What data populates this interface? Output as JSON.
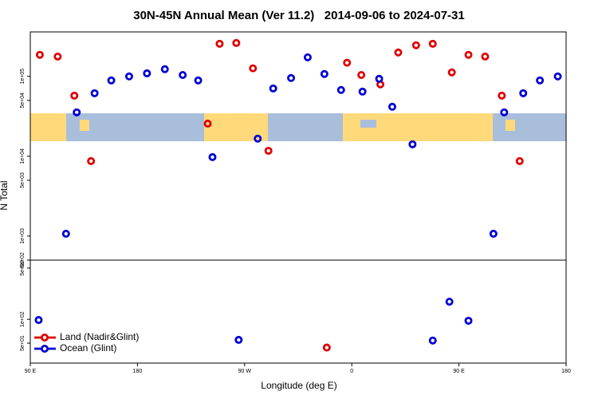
{
  "chart_data": {
    "type": "scatter",
    "title": "30N-45N Annual Mean (Ver 11.2)   2014-09-06 to 2024-07-31",
    "xlabel": "Longitude (deg E)",
    "ylabel": "N Total",
    "xlim": [
      90,
      540
    ],
    "xticks": [
      {
        "value": 90,
        "label": "90 E"
      },
      180,
      {
        "value": 270,
        "label": "90 W"
      },
      {
        "value": 360,
        "label": "0"
      },
      {
        "value": 450,
        "label": "90 E"
      },
      {
        "value": 540,
        "label": "180"
      }
    ],
    "log_y": true,
    "ylim": [
      500,
      360000
    ],
    "yticks": [
      {
        "value": 500,
        "label": "5e+02"
      },
      {
        "value": 1000,
        "label": "1e+03"
      },
      {
        "value": 5000,
        "label": "5e+03"
      },
      {
        "value": 10000,
        "label": "1e+04"
      },
      {
        "value": 50000,
        "label": "5e+04"
      },
      {
        "value": 100000,
        "label": "1e+05"
      }
    ],
    "y2lim": [
      28,
      560
    ],
    "y2ticks": [
      {
        "value": 50,
        "label": "5e+01"
      },
      {
        "value": 100,
        "label": "1e+02"
      },
      {
        "value": 500,
        "label": "5e+02"
      }
    ],
    "legend": "lower left",
    "series": [
      {
        "name": "Land (Nadir&Glint)",
        "color": "#e00000",
        "x": [
          98,
          113,
          127,
          141,
          239,
          249,
          263,
          277,
          290,
          339,
          356,
          368,
          384,
          399,
          414,
          428,
          444,
          458,
          472,
          486,
          501
        ],
        "values": [
          186000,
          177000,
          57400,
          8690,
          25600,
          256000,
          262000,
          126000,
          11700,
          44,
          148000,
          104000,
          79300,
          199000,
          245000,
          256000,
          112000,
          186000,
          177000,
          57400,
          8690
        ]
      },
      {
        "name": "Ocean (Glint)",
        "color": "#0000d8",
        "x": [
          97,
          120,
          129,
          144,
          158,
          173,
          188,
          203,
          218,
          231,
          243,
          265,
          281,
          294,
          309,
          323,
          337,
          351,
          369,
          383,
          394,
          411,
          428,
          442,
          458,
          479,
          488,
          504,
          518,
          533
        ],
        "values": [
          98,
          1070,
          35400,
          61500,
          88900,
          99800,
          109000,
          123000,
          104000,
          88900,
          9750,
          55,
          16600,
          70600,
          95300,
          173000,
          107000,
          67500,
          64400,
          93100,
          41600,
          14100,
          54,
          167,
          96,
          1070,
          35400,
          61500,
          88900,
          99800
        ]
      }
    ]
  }
}
